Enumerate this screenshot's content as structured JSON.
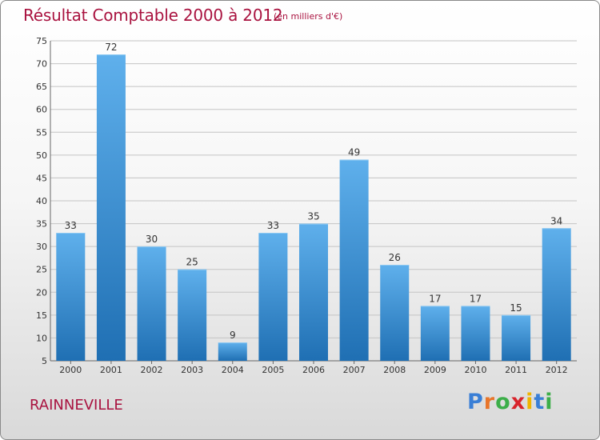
{
  "header": {
    "title": "Résultat Comptable 2000 à 2012",
    "subtitle": "(en milliers d'€)"
  },
  "footer": {
    "city": "RAINNEVILLE",
    "logo_letters": [
      "P",
      "r",
      "o",
      "x",
      "i",
      "t",
      "i"
    ],
    "logo_colors": [
      "#3a7fd6",
      "#e8752a",
      "#3cae49",
      "#d8242c",
      "#f0b400",
      "#3a7fd6",
      "#3cae49"
    ]
  },
  "chart_data": {
    "type": "bar",
    "title": "Résultat Comptable 2000 à 2012",
    "subtitle": "(en milliers d'€)",
    "xlabel": "",
    "ylabel": "",
    "categories": [
      "2000",
      "2001",
      "2002",
      "2003",
      "2004",
      "2005",
      "2006",
      "2007",
      "2008",
      "2009",
      "2010",
      "2011",
      "2012"
    ],
    "values": [
      33,
      72,
      30,
      25,
      9,
      33,
      35,
      49,
      26,
      17,
      17,
      15,
      34
    ],
    "ylim": [
      5,
      75
    ],
    "yticks": [
      5,
      10,
      15,
      20,
      25,
      30,
      35,
      40,
      45,
      50,
      55,
      60,
      65,
      70,
      75
    ],
    "grid": true,
    "bar_color_top": "#5fb0ec",
    "bar_color_bottom": "#1f6fb3",
    "label_color": "#333333"
  }
}
